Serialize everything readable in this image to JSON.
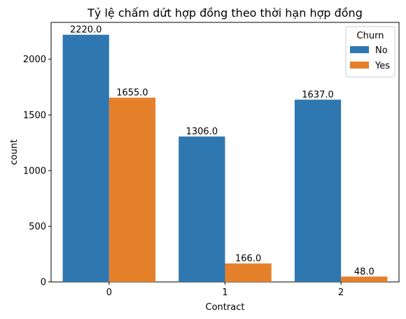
{
  "chart_data": {
    "type": "bar",
    "title": "Tỷ lệ chấm dứt hợp đồng theo thời hạn hợp đồng",
    "xlabel": "Contract",
    "ylabel": "count",
    "categories": [
      "0",
      "1",
      "2"
    ],
    "series": [
      {
        "name": "No",
        "color": "#2e77b0",
        "values": [
          2220.0,
          1306.0,
          1637.0
        ]
      },
      {
        "name": "Yes",
        "color": "#e5802a",
        "values": [
          1655.0,
          166.0,
          48.0
        ]
      }
    ],
    "data_labels": [
      [
        "2220.0",
        "1306.0",
        "1637.0"
      ],
      [
        "1655.0",
        "166.0",
        "48.0"
      ]
    ],
    "ylim": [
      0,
      2331
    ],
    "yticks": [
      0,
      500,
      1000,
      1500,
      2000
    ],
    "ytick_labels": [
      "0",
      "500",
      "1000",
      "1500",
      "2000"
    ],
    "legend": {
      "title": "Churn",
      "position": "top-right"
    },
    "grid": false
  }
}
